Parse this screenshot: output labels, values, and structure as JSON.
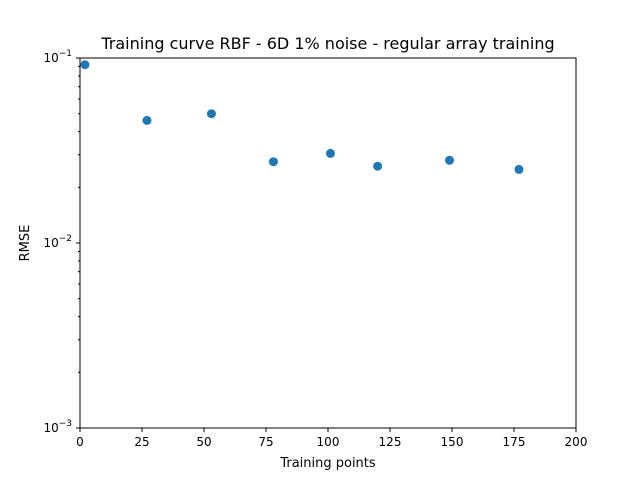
{
  "chart_data": {
    "type": "scatter",
    "title": "Training curve RBF - 6D 1% noise - regular array training",
    "xlabel": "Training points",
    "ylabel": "RMSE",
    "xlim": [
      0,
      200
    ],
    "ylim": [
      0.001,
      0.1
    ],
    "yscale": "log",
    "grid": false,
    "legend": "none",
    "x_ticks": [
      0,
      25,
      50,
      75,
      100,
      125,
      150,
      175,
      200
    ],
    "x_tick_labels": [
      "0",
      "25",
      "50",
      "75",
      "100",
      "125",
      "150",
      "175",
      "200"
    ],
    "y_ticks": [
      0.001,
      0.01,
      0.1
    ],
    "y_tick_labels": [
      {
        "base": "10",
        "exp": "−3"
      },
      {
        "base": "10",
        "exp": "−2"
      },
      {
        "base": "10",
        "exp": "−1"
      }
    ],
    "marker_color": "#1f77b4",
    "series": [
      {
        "x": [
          2,
          27,
          53,
          78,
          101,
          120,
          149,
          177
        ],
        "y": [
          0.092,
          0.046,
          0.05,
          0.0275,
          0.0305,
          0.026,
          0.028,
          0.025
        ]
      }
    ]
  }
}
